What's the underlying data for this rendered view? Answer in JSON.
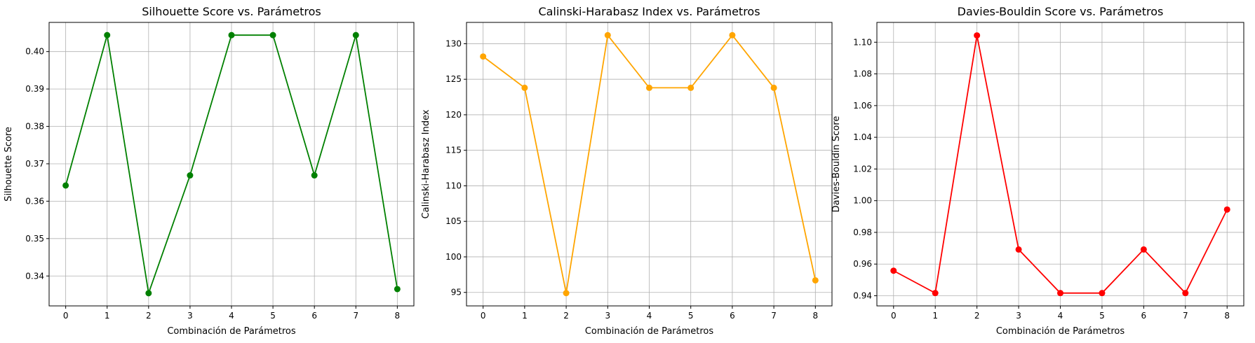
{
  "chart_data": [
    {
      "type": "line",
      "title": "Silhouette Score vs. Parámetros",
      "xlabel": "Combinación de Parámetros",
      "ylabel": "Silhouette Score",
      "color": "#008000",
      "marker": "circle",
      "grid": true,
      "x": [
        0,
        1,
        2,
        3,
        4,
        5,
        6,
        7,
        8
      ],
      "values": [
        0.3642,
        0.4044,
        0.3354,
        0.3669,
        0.4044,
        0.4044,
        0.3669,
        0.4044,
        0.3365
      ],
      "xlim": [
        -0.4,
        8.4
      ],
      "ylim": [
        0.332,
        0.4078
      ],
      "xticks": [
        0,
        1,
        2,
        3,
        4,
        5,
        6,
        7,
        8
      ],
      "yticks": [
        0.34,
        0.35,
        0.36,
        0.37,
        0.38,
        0.39,
        0.4
      ],
      "ytick_labels": [
        "0.34",
        "0.35",
        "0.36",
        "0.37",
        "0.38",
        "0.39",
        "0.40"
      ]
    },
    {
      "type": "line",
      "title": "Calinski-Harabasz Index vs. Parámetros",
      "xlabel": "Combinación de Parámetros",
      "ylabel": "Calinski-Harabasz Index",
      "color": "#FFA500",
      "marker": "circle",
      "grid": true,
      "x": [
        0,
        1,
        2,
        3,
        4,
        5,
        6,
        7,
        8
      ],
      "values": [
        128.2,
        123.8,
        94.9,
        131.2,
        123.8,
        123.8,
        131.2,
        123.8,
        96.7
      ],
      "xlim": [
        -0.4,
        8.4
      ],
      "ylim": [
        93.1,
        133.0
      ],
      "xticks": [
        0,
        1,
        2,
        3,
        4,
        5,
        6,
        7,
        8
      ],
      "yticks": [
        95,
        100,
        105,
        110,
        115,
        120,
        125,
        130
      ],
      "ytick_labels": [
        "95",
        "100",
        "105",
        "110",
        "115",
        "120",
        "125",
        "130"
      ]
    },
    {
      "type": "line",
      "title": "Davies-Bouldin Score vs. Parámetros",
      "xlabel": "Combinación de Parámetros",
      "ylabel": "Davies-Bouldin Score",
      "color": "#FF0000",
      "marker": "circle",
      "grid": true,
      "x": [
        0,
        1,
        2,
        3,
        4,
        5,
        6,
        7,
        8
      ],
      "values": [
        0.9558,
        0.9417,
        1.1043,
        0.9692,
        0.9417,
        0.9417,
        0.9692,
        0.9417,
        0.9944
      ],
      "xlim": [
        -0.4,
        8.4
      ],
      "ylim": [
        0.9336,
        1.1125
      ],
      "xticks": [
        0,
        1,
        2,
        3,
        4,
        5,
        6,
        7,
        8
      ],
      "yticks": [
        0.94,
        0.96,
        0.98,
        1.0,
        1.02,
        1.04,
        1.06,
        1.08,
        1.1
      ],
      "ytick_labels": [
        "0.94",
        "0.96",
        "0.98",
        "1.00",
        "1.02",
        "1.04",
        "1.06",
        "1.08",
        "1.10"
      ]
    }
  ]
}
